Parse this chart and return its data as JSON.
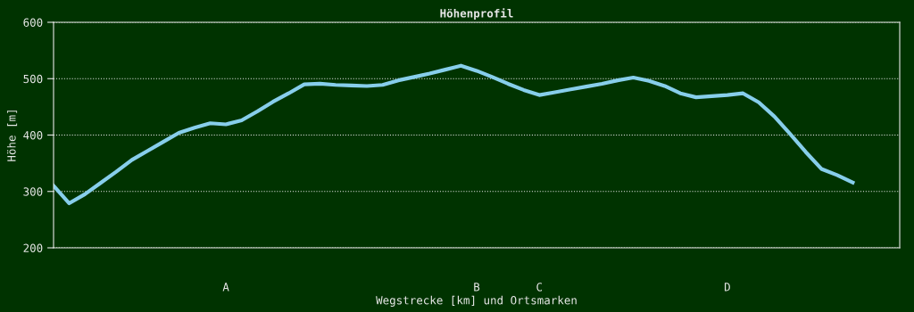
{
  "chart_data": {
    "type": "line",
    "title": "Höhenprofil",
    "xlabel": "Wegstrecke [km] und Ortsmarken",
    "ylabel": "Höhe [m]",
    "categories": [
      null,
      null,
      null,
      null,
      null,
      null,
      null,
      null,
      null,
      null,
      null,
      "A",
      null,
      null,
      null,
      null,
      null,
      null,
      null,
      null,
      null,
      null,
      null,
      null,
      null,
      null,
      null,
      "B",
      null,
      null,
      null,
      "C",
      null,
      null,
      null,
      null,
      null,
      null,
      null,
      null,
      null,
      null,
      null,
      "D",
      null,
      null,
      null,
      null,
      null,
      null,
      null,
      null,
      null,
      null,
      null
    ],
    "series": [
      {
        "color": "#87ceeb",
        "values": [
          310,
          279,
          295,
          315,
          335,
          356,
          372,
          388,
          404,
          413,
          421,
          419,
          426,
          442,
          459,
          474,
          490,
          491,
          489,
          488,
          487,
          489,
          497,
          503,
          509,
          516,
          523,
          514,
          503,
          491,
          480,
          471,
          476,
          481,
          486,
          491,
          497,
          502,
          496,
          487,
          474,
          467,
          469,
          471,
          474,
          458,
          433,
          402,
          370,
          340,
          329,
          316,
          null,
          null,
          null
        ]
      }
    ],
    "ylim": [
      200,
      600
    ],
    "yticks": [
      200,
      300,
      400,
      500,
      600
    ],
    "grid": true,
    "marker": "none",
    "line_style": "solid"
  }
}
